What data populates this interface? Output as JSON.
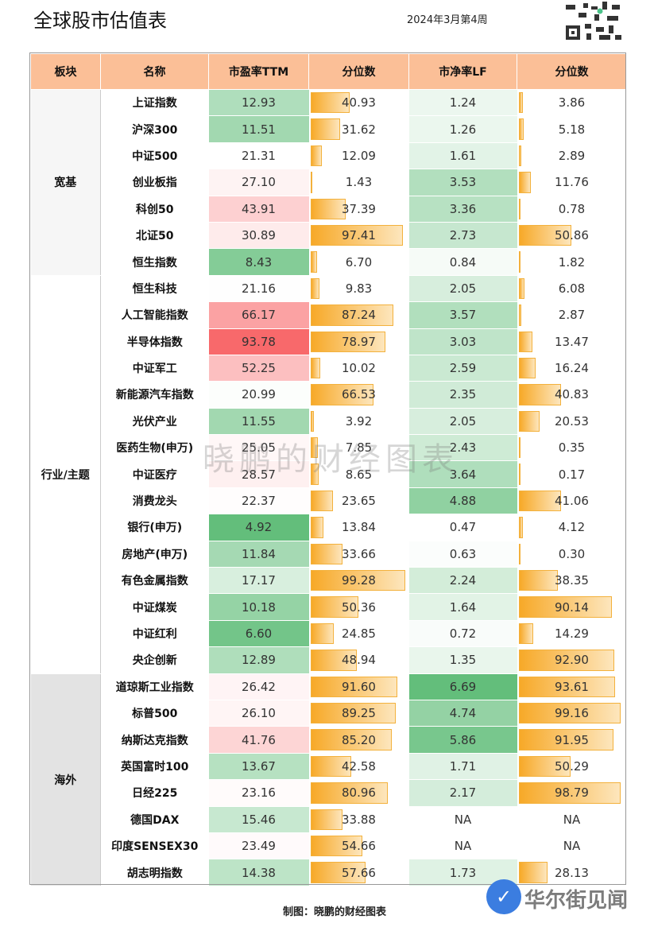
{
  "title": "全球股市估值表",
  "week": "2024年3月第4周",
  "headers": [
    "板块",
    "名称",
    "市盈率TTM",
    "分位数",
    "市净率LF",
    "分位数"
  ],
  "sections": [
    {
      "name": "宽基",
      "rows": [
        [
          "上证指数",
          "12.93",
          "40.93",
          "1.24",
          "3.86"
        ],
        [
          "沪深300",
          "11.51",
          "31.62",
          "1.26",
          "5.18"
        ],
        [
          "中证500",
          "21.31",
          "12.09",
          "1.61",
          "2.89"
        ],
        [
          "创业板指",
          "27.10",
          "1.43",
          "3.53",
          "11.76"
        ],
        [
          "科创50",
          "43.91",
          "37.39",
          "3.36",
          "0.78"
        ],
        [
          "北证50",
          "30.89",
          "97.41",
          "2.73",
          "50.86"
        ],
        [
          "恒生指数",
          "8.43",
          "6.70",
          "0.84",
          "1.82"
        ]
      ]
    },
    {
      "name": "行业/主题",
      "rows": [
        [
          "恒生科技",
          "21.16",
          "9.83",
          "2.05",
          "6.08"
        ],
        [
          "人工智能指数",
          "66.17",
          "87.24",
          "3.57",
          "2.87"
        ],
        [
          "半导体指数",
          "93.78",
          "78.97",
          "3.03",
          "13.47"
        ],
        [
          "中证军工",
          "52.25",
          "10.02",
          "2.59",
          "16.24"
        ],
        [
          "新能源汽车指数",
          "20.99",
          "66.53",
          "2.35",
          "40.83"
        ],
        [
          "光伏产业",
          "11.55",
          "3.92",
          "2.05",
          "20.53"
        ],
        [
          "医药生物(申万)",
          "25.05",
          "7.85",
          "2.43",
          "0.35"
        ],
        [
          "中证医疗",
          "28.57",
          "8.65",
          "3.64",
          "0.17"
        ],
        [
          "消费龙头",
          "22.37",
          "23.65",
          "4.88",
          "41.06"
        ],
        [
          "银行(申万)",
          "4.92",
          "13.84",
          "0.47",
          "4.12"
        ],
        [
          "房地产(申万)",
          "11.84",
          "33.66",
          "0.63",
          "0.30"
        ],
        [
          "有色金属指数",
          "17.17",
          "99.28",
          "2.24",
          "38.35"
        ],
        [
          "中证煤炭",
          "10.18",
          "50.36",
          "1.64",
          "90.14"
        ],
        [
          "中证红利",
          "6.60",
          "24.85",
          "0.72",
          "14.29"
        ],
        [
          "央企创新",
          "12.89",
          "48.94",
          "1.35",
          "92.90"
        ]
      ]
    },
    {
      "name": "海外",
      "rows": [
        [
          "道琼斯工业指数",
          "26.42",
          "91.60",
          "6.69",
          "93.61"
        ],
        [
          "标普500",
          "26.10",
          "89.25",
          "4.74",
          "99.16"
        ],
        [
          "纳斯达克指数",
          "41.76",
          "85.20",
          "5.86",
          "91.95"
        ],
        [
          "英国富时100",
          "13.67",
          "42.58",
          "1.71",
          "50.29"
        ],
        [
          "日经225",
          "23.16",
          "80.96",
          "2.17",
          "98.79"
        ],
        [
          "德国DAX",
          "15.46",
          "33.88",
          "NA",
          "NA"
        ],
        [
          "印度SENSEX30",
          "23.49",
          "54.66",
          "NA",
          "NA"
        ],
        [
          "胡志明指数",
          "14.38",
          "57.66",
          "1.73",
          "28.13"
        ]
      ]
    }
  ],
  "colors": {
    "header": "#fbbf97",
    "low": "#63be7b",
    "high": "#f8696b",
    "bar": "#f7a928"
  },
  "watermark": "晓鹏的财经图表",
  "footer": "制图：晓鹏的财经图表",
  "overlay_watermark": "华尔街见闻"
}
